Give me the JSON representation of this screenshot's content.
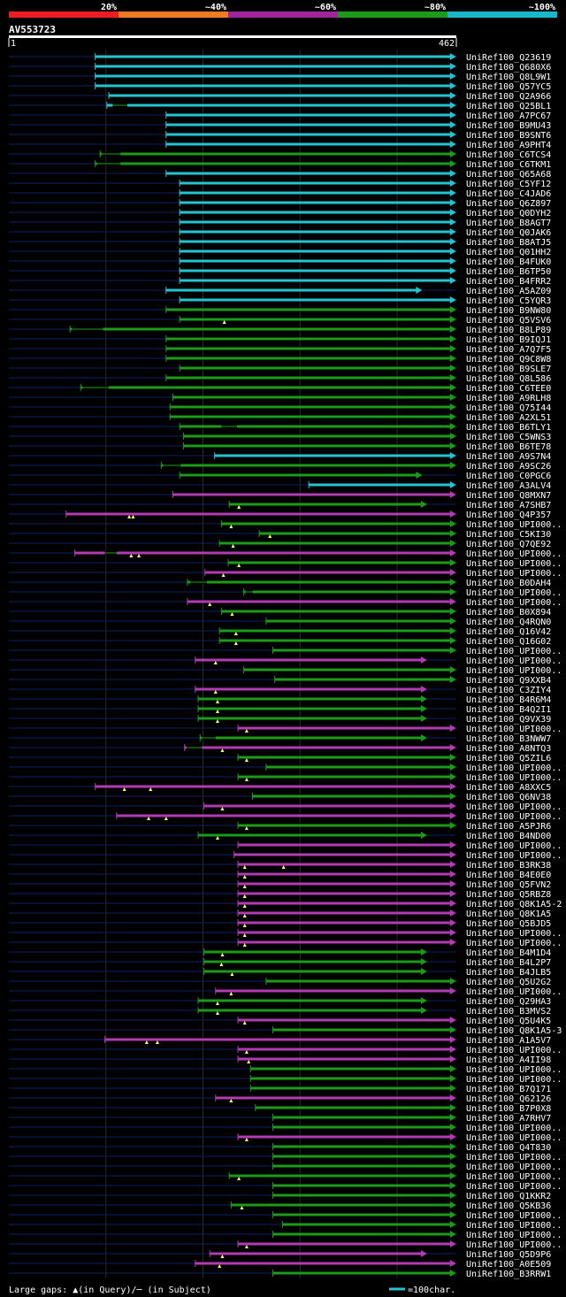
{
  "chart_data": {
    "type": "alignment-overview",
    "title": "AV553723",
    "query_length": 462,
    "axis_start": "1",
    "axis_end": "462",
    "identity_scale": [
      {
        "label": "20%",
        "color": "#ee1c24"
      },
      {
        "label": "~40%",
        "color": "#f07a20"
      },
      {
        "label": "~60%",
        "color": "#a0259c"
      },
      {
        "label": "~80%",
        "color": "#1a9c1a"
      },
      {
        "label": "~100%",
        "color": "#19b8c8"
      }
    ],
    "series_colors": {
      "c": "#23c4d2",
      "g": "#1a9c1a",
      "m": "#b23ab3",
      "q": "#0c1f66",
      "gap": "#15a615",
      "tri": "#ffff66"
    },
    "hits": [
      {
        "label": "UniRef100_Q23619",
        "s": 90,
        "e": 460,
        "c": "c"
      },
      {
        "label": "UniRef100_Q680X6",
        "s": 90,
        "e": 460,
        "c": "c"
      },
      {
        "label": "UniRef100_Q8L9W1",
        "s": 90,
        "e": 460,
        "c": "c"
      },
      {
        "label": "UniRef100_Q57YC5",
        "s": 90,
        "e": 460,
        "c": "c"
      },
      {
        "label": "UniRef100_Q2A966",
        "s": 104,
        "e": 460,
        "c": "c"
      },
      {
        "label": "UniRef100_Q25BL1",
        "s": 102,
        "e": 460,
        "c": "c",
        "gaps": [
          [
            108,
            123
          ]
        ]
      },
      {
        "label": "UniRef100_A7PC67",
        "s": 163,
        "e": 460,
        "c": "c"
      },
      {
        "label": "UniRef100_B9MU43",
        "s": 163,
        "e": 460,
        "c": "c"
      },
      {
        "label": "UniRef100_B9SNT6",
        "s": 163,
        "e": 460,
        "c": "c"
      },
      {
        "label": "UniRef100_A9PHT4",
        "s": 163,
        "e": 460,
        "c": "c"
      },
      {
        "label": "UniRef100_C6TCS4",
        "s": 95,
        "e": 460,
        "c": "g",
        "gaps": [
          [
            97,
            116
          ]
        ]
      },
      {
        "label": "UniRef100_C6TKM1",
        "s": 90,
        "e": 460,
        "c": "g",
        "gaps": [
          [
            92,
            116
          ]
        ]
      },
      {
        "label": "UniRef100_Q65A68",
        "s": 163,
        "e": 460,
        "c": "c"
      },
      {
        "label": "UniRef100_C5YF12",
        "s": 177,
        "e": 460,
        "c": "c"
      },
      {
        "label": "UniRef100_C4JAD6",
        "s": 177,
        "e": 460,
        "c": "c"
      },
      {
        "label": "UniRef100_Q6Z897",
        "s": 177,
        "e": 460,
        "c": "c"
      },
      {
        "label": "UniRef100_Q0DYH2",
        "s": 177,
        "e": 460,
        "c": "c"
      },
      {
        "label": "UniRef100_B8AGT7",
        "s": 177,
        "e": 460,
        "c": "c"
      },
      {
        "label": "UniRef100_Q0JAK6",
        "s": 177,
        "e": 460,
        "c": "c"
      },
      {
        "label": "UniRef100_B8ATJ5",
        "s": 177,
        "e": 460,
        "c": "c"
      },
      {
        "label": "UniRef100_Q01HH2",
        "s": 177,
        "e": 460,
        "c": "c"
      },
      {
        "label": "UniRef100_B4FUK0",
        "s": 177,
        "e": 460,
        "c": "c"
      },
      {
        "label": "UniRef100_B6TP50",
        "s": 177,
        "e": 460,
        "c": "c"
      },
      {
        "label": "UniRef100_B4FRR2",
        "s": 177,
        "e": 460,
        "c": "c"
      },
      {
        "label": "UniRef100_A5AZ09",
        "s": 163,
        "e": 425,
        "c": "c"
      },
      {
        "label": "UniRef100_C5YQR3",
        "s": 177,
        "e": 460,
        "c": "c"
      },
      {
        "label": "UniRef100_B9NW80",
        "s": 163,
        "e": 460,
        "c": "g"
      },
      {
        "label": "UniRef100_Q5VSV6",
        "s": 177,
        "e": 460,
        "c": "g",
        "tri": [
          223
        ]
      },
      {
        "label": "UniRef100_B8LP89",
        "s": 64,
        "e": 460,
        "c": "g",
        "gaps": [
          [
            66,
            98
          ]
        ]
      },
      {
        "label": "UniRef100_B9IQJ1",
        "s": 163,
        "e": 460,
        "c": "g"
      },
      {
        "label": "UniRef100_A7Q7F5",
        "s": 163,
        "e": 460,
        "c": "g"
      },
      {
        "label": "UniRef100_Q9C8W8",
        "s": 163,
        "e": 460,
        "c": "g"
      },
      {
        "label": "UniRef100_B9SLE7",
        "s": 177,
        "e": 460,
        "c": "g"
      },
      {
        "label": "UniRef100_Q8L586",
        "s": 163,
        "e": 460,
        "c": "g"
      },
      {
        "label": "UniRef100_C6TEE0",
        "s": 75,
        "e": 460,
        "c": "g",
        "gaps": [
          [
            77,
            104
          ]
        ]
      },
      {
        "label": "UniRef100_A9RLH8",
        "s": 170,
        "e": 460,
        "c": "g"
      },
      {
        "label": "UniRef100_Q75I44",
        "s": 167,
        "e": 460,
        "c": "g"
      },
      {
        "label": "UniRef100_A2XL51",
        "s": 167,
        "e": 460,
        "c": "g"
      },
      {
        "label": "UniRef100_B6TLY1",
        "s": 177,
        "e": 460,
        "c": "g",
        "gaps": [
          [
            220,
            236
          ]
        ]
      },
      {
        "label": "UniRef100_C5WNS3",
        "s": 181,
        "e": 460,
        "c": "g"
      },
      {
        "label": "UniRef100_B6TE78",
        "s": 181,
        "e": 460,
        "c": "g"
      },
      {
        "label": "UniRef100_A9S7N4",
        "s": 213,
        "e": 460,
        "c": "c"
      },
      {
        "label": "UniRef100_A9SC26",
        "s": 158,
        "e": 460,
        "c": "g",
        "gaps": [
          [
            160,
            178
          ]
        ]
      },
      {
        "label": "UniRef100_C0PGC6",
        "s": 177,
        "e": 425,
        "c": "g"
      },
      {
        "label": "UniRef100_A3ALV4",
        "s": 310,
        "e": 460,
        "c": "c"
      },
      {
        "label": "UniRef100_Q8MXN7",
        "s": 170,
        "e": 460,
        "c": "m"
      },
      {
        "label": "UniRef100_A7SHB7",
        "s": 228,
        "e": 430,
        "c": "g",
        "tri": [
          238
        ]
      },
      {
        "label": "UniRef100_Q4P357",
        "s": 60,
        "e": 460,
        "c": "m",
        "tri": [
          125,
          129
        ]
      },
      {
        "label": "UniRef100_UPI000..",
        "s": 220,
        "e": 460,
        "c": "g",
        "tri": [
          230
        ]
      },
      {
        "label": "UniRef100_C5KI30",
        "s": 259,
        "e": 460,
        "c": "g",
        "tri": [
          270
        ]
      },
      {
        "label": "UniRef100_Q7QE92",
        "s": 218,
        "e": 460,
        "c": "g",
        "tri": [
          232
        ]
      },
      {
        "label": "UniRef100_UPI000..",
        "s": 69,
        "e": 460,
        "c": "m",
        "gaps": [
          [
            100,
            112
          ]
        ],
        "tri": [
          127,
          135
        ]
      },
      {
        "label": "UniRef100_UPI000..",
        "s": 227,
        "e": 460,
        "c": "g",
        "tri": [
          238
        ]
      },
      {
        "label": "UniRef100_UPI000..",
        "s": 203,
        "e": 460,
        "c": "m",
        "tri": [
          222
        ]
      },
      {
        "label": "UniRef100_B0DAH4",
        "s": 185,
        "e": 460,
        "c": "g",
        "gaps": [
          [
            188,
            205
          ]
        ]
      },
      {
        "label": "UniRef100_UPI000..",
        "s": 243,
        "e": 460,
        "c": "g",
        "gaps": [
          [
            245,
            252
          ]
        ]
      },
      {
        "label": "UniRef100_UPI000..",
        "s": 185,
        "e": 460,
        "c": "m",
        "tri": [
          208
        ]
      },
      {
        "label": "UniRef100_B0X894",
        "s": 220,
        "e": 460,
        "c": "g",
        "tri": [
          231
        ]
      },
      {
        "label": "UniRef100_Q4RQN0",
        "s": 266,
        "e": 460,
        "c": "g"
      },
      {
        "label": "UniRef100_Q16V42",
        "s": 218,
        "e": 460,
        "c": "g",
        "tri": [
          235
        ]
      },
      {
        "label": "UniRef100_Q16G02",
        "s": 218,
        "e": 460,
        "c": "g",
        "tri": [
          235
        ]
      },
      {
        "label": "UniRef100_UPI000..",
        "s": 273,
        "e": 460,
        "c": "g"
      },
      {
        "label": "UniRef100_UPI000..",
        "s": 193,
        "e": 430,
        "c": "m",
        "tri": [
          214
        ]
      },
      {
        "label": "UniRef100_UPI000..",
        "s": 243,
        "e": 460,
        "c": "g"
      },
      {
        "label": "UniRef100_Q9XXB4",
        "s": 275,
        "e": 460,
        "c": "g"
      },
      {
        "label": "UniRef100_C3ZIY4",
        "s": 193,
        "e": 430,
        "c": "m",
        "tri": [
          214
        ]
      },
      {
        "label": "UniRef100_B4R6M4",
        "s": 196,
        "e": 430,
        "c": "g",
        "tri": [
          216
        ]
      },
      {
        "label": "UniRef100_B4Q2I1",
        "s": 196,
        "e": 430,
        "c": "g",
        "tri": [
          216
        ]
      },
      {
        "label": "UniRef100_Q9VX39",
        "s": 196,
        "e": 430,
        "c": "g",
        "tri": [
          216
        ]
      },
      {
        "label": "UniRef100_UPI000..",
        "s": 237,
        "e": 460,
        "c": "m",
        "tri": [
          246
        ]
      },
      {
        "label": "UniRef100_B3NWW7",
        "s": 198,
        "e": 430,
        "c": "g",
        "gaps": [
          [
            200,
            214
          ]
        ]
      },
      {
        "label": "UniRef100_A8NTQ3",
        "s": 182,
        "e": 460,
        "c": "m",
        "gaps": [
          [
            184,
            200
          ]
        ],
        "tri": [
          221
        ]
      },
      {
        "label": "UniRef100_Q5ZIL6",
        "s": 237,
        "e": 460,
        "c": "g",
        "tri": [
          246
        ]
      },
      {
        "label": "UniRef100_UPI000..",
        "s": 266,
        "e": 460,
        "c": "g"
      },
      {
        "label": "UniRef100_UPI000..",
        "s": 237,
        "e": 460,
        "c": "g",
        "tri": [
          246
        ]
      },
      {
        "label": "UniRef100_A8XXC5",
        "s": 90,
        "e": 460,
        "c": "m",
        "tri": [
          120,
          147
        ]
      },
      {
        "label": "UniRef100_Q6NV38",
        "s": 252,
        "e": 460,
        "c": "g"
      },
      {
        "label": "UniRef100_UPI000..",
        "s": 202,
        "e": 460,
        "c": "m",
        "tri": [
          221
        ]
      },
      {
        "label": "UniRef100_UPI000..",
        "s": 112,
        "e": 460,
        "c": "m",
        "tri": [
          145,
          163
        ]
      },
      {
        "label": "UniRef100_A5PJR6",
        "s": 237,
        "e": 460,
        "c": "g",
        "tri": [
          246
        ]
      },
      {
        "label": "UniRef100_B4ND00",
        "s": 196,
        "e": 430,
        "c": "g",
        "tri": [
          216
        ]
      },
      {
        "label": "UniRef100_UPI000..",
        "s": 237,
        "e": 460,
        "c": "m"
      },
      {
        "label": "UniRef100_UPI000..",
        "s": 233,
        "e": 460,
        "c": "m"
      },
      {
        "label": "UniRef100_B3RK38",
        "s": 237,
        "e": 460,
        "c": "m",
        "tri": [
          244,
          284
        ]
      },
      {
        "label": "UniRef100_B4E0E0",
        "s": 237,
        "e": 460,
        "c": "m",
        "tri": [
          244
        ]
      },
      {
        "label": "UniRef100_Q5FVN2",
        "s": 237,
        "e": 460,
        "c": "m",
        "tri": [
          244
        ]
      },
      {
        "label": "UniRef100_Q5RBZ8",
        "s": 237,
        "e": 460,
        "c": "m",
        "tri": [
          244
        ]
      },
      {
        "label": "UniRef100_Q8K1A5-2",
        "s": 237,
        "e": 460,
        "c": "m",
        "tri": [
          244
        ]
      },
      {
        "label": "UniRef100_Q8K1A5",
        "s": 237,
        "e": 460,
        "c": "m",
        "tri": [
          244
        ]
      },
      {
        "label": "UniRef100_Q5BJD5",
        "s": 237,
        "e": 460,
        "c": "m",
        "tri": [
          244
        ]
      },
      {
        "label": "UniRef100_UPI000..",
        "s": 237,
        "e": 460,
        "c": "m",
        "tri": [
          244
        ]
      },
      {
        "label": "UniRef100_UPI000..",
        "s": 237,
        "e": 460,
        "c": "m",
        "tri": [
          244
        ]
      },
      {
        "label": "UniRef100_B4M1D4",
        "s": 202,
        "e": 430,
        "c": "g",
        "tri": [
          221
        ]
      },
      {
        "label": "UniRef100_B4L2P7",
        "s": 202,
        "e": 430,
        "c": "g",
        "tri": [
          220
        ]
      },
      {
        "label": "UniRef100_B4JLB5",
        "s": 202,
        "e": 430,
        "c": "g",
        "tri": [
          231
        ]
      },
      {
        "label": "UniRef100_Q5U2G2",
        "s": 266,
        "e": 460,
        "c": "g"
      },
      {
        "label": "UniRef100_UPI000..",
        "s": 214,
        "e": 460,
        "c": "m",
        "tri": [
          230
        ]
      },
      {
        "label": "UniRef100_Q29HA3",
        "s": 196,
        "e": 430,
        "c": "g",
        "tri": [
          216
        ]
      },
      {
        "label": "UniRef100_B3MVS2",
        "s": 196,
        "e": 430,
        "c": "g",
        "tri": [
          216
        ]
      },
      {
        "label": "UniRef100_Q5U4K5",
        "s": 237,
        "e": 460,
        "c": "m",
        "tri": [
          244
        ]
      },
      {
        "label": "UniRef100_Q8K1A5-3",
        "s": 273,
        "e": 460,
        "c": "g"
      },
      {
        "label": "UniRef100_A1A5V7",
        "s": 100,
        "e": 460,
        "c": "m",
        "tri": [
          143,
          154
        ]
      },
      {
        "label": "UniRef100_UPI000..",
        "s": 237,
        "e": 460,
        "c": "m",
        "tri": [
          246
        ]
      },
      {
        "label": "UniRef100_A4II98",
        "s": 237,
        "e": 460,
        "c": "m",
        "tri": [
          248
        ]
      },
      {
        "label": "UniRef100_UPI000..",
        "s": 250,
        "e": 460,
        "c": "g"
      },
      {
        "label": "UniRef100_UPI000..",
        "s": 250,
        "e": 460,
        "c": "g"
      },
      {
        "label": "UniRef100_B7Q171",
        "s": 250,
        "e": 460,
        "c": "g"
      },
      {
        "label": "UniRef100_Q62126",
        "s": 214,
        "e": 460,
        "c": "m",
        "tri": [
          230
        ]
      },
      {
        "label": "UniRef100_B7P0X8",
        "s": 255,
        "e": 460,
        "c": "g"
      },
      {
        "label": "UniRef100_A7RHV7",
        "s": 273,
        "e": 460,
        "c": "g"
      },
      {
        "label": "UniRef100_UPI000..",
        "s": 273,
        "e": 460,
        "c": "g"
      },
      {
        "label": "UniRef100_UPI000..",
        "s": 237,
        "e": 460,
        "c": "m",
        "tri": [
          246
        ]
      },
      {
        "label": "UniRef100_Q4T830",
        "s": 273,
        "e": 460,
        "c": "g"
      },
      {
        "label": "UniRef100_UPI000..",
        "s": 273,
        "e": 460,
        "c": "g"
      },
      {
        "label": "UniRef100_UPI000..",
        "s": 273,
        "e": 460,
        "c": "g"
      },
      {
        "label": "UniRef100_UPI000..",
        "s": 228,
        "e": 460,
        "c": "g",
        "tri": [
          238
        ]
      },
      {
        "label": "UniRef100_UPI000..",
        "s": 273,
        "e": 460,
        "c": "g"
      },
      {
        "label": "UniRef100_Q1KKR2",
        "s": 273,
        "e": 460,
        "c": "g"
      },
      {
        "label": "UniRef100_Q5KB36",
        "s": 230,
        "e": 460,
        "c": "g",
        "tri": [
          241
        ]
      },
      {
        "label": "UniRef100_UPI000..",
        "s": 273,
        "e": 460,
        "c": "g"
      },
      {
        "label": "UniRef100_UPI000..",
        "s": 283,
        "e": 460,
        "c": "g"
      },
      {
        "label": "UniRef100_UPI000..",
        "s": 273,
        "e": 460,
        "c": "g"
      },
      {
        "label": "UniRef100_UPI000..",
        "s": 237,
        "e": 460,
        "c": "m",
        "tri": [
          246
        ]
      },
      {
        "label": "UniRef100_Q5D9P6",
        "s": 208,
        "e": 430,
        "c": "m",
        "tri": [
          221
        ]
      },
      {
        "label": "UniRef100_A0E509",
        "s": 193,
        "e": 460,
        "c": "m",
        "tri": [
          218
        ]
      },
      {
        "label": "UniRef100_B3RRW1",
        "s": 273,
        "e": 460,
        "c": "g"
      }
    ],
    "footer_legend": "Large gaps: ▲(in Query)/─ (in Subject)",
    "scale_label": "=100char."
  }
}
